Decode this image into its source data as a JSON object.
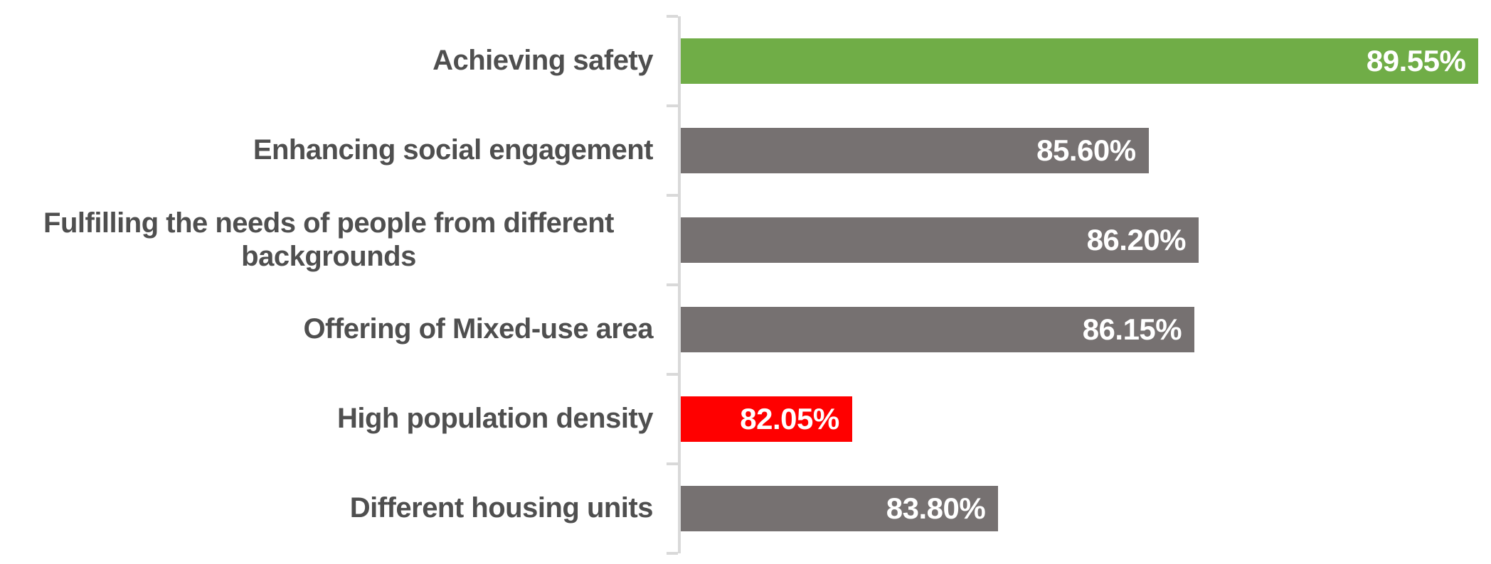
{
  "chart_data": {
    "type": "bar",
    "orientation": "horizontal",
    "title": "",
    "xlabel": "",
    "ylabel": "",
    "categories": [
      "Achieving safety",
      "Enhancing social engagement",
      "Fulfilling the needs of people from different backgrounds",
      "Offering of Mixed-use area",
      "High population density",
      "Different housing units"
    ],
    "values": [
      89.55,
      85.6,
      86.2,
      86.15,
      82.05,
      83.8
    ],
    "value_labels": [
      "89.55%",
      "85.60%",
      "86.20%",
      "86.15%",
      "82.05%",
      "83.80%"
    ],
    "bar_colors": [
      "#70AD47",
      "#767171",
      "#767171",
      "#767171",
      "#FF0000",
      "#767171"
    ],
    "xlim": [
      80,
      89.7
    ],
    "grid": false,
    "legend": false,
    "colors": {
      "highlight_positive": "#70AD47",
      "highlight_negative": "#FF0000",
      "neutral": "#767171",
      "axis": "#d9d9d9",
      "category_text": "#4f4f4f",
      "value_text": "#ffffff"
    }
  }
}
